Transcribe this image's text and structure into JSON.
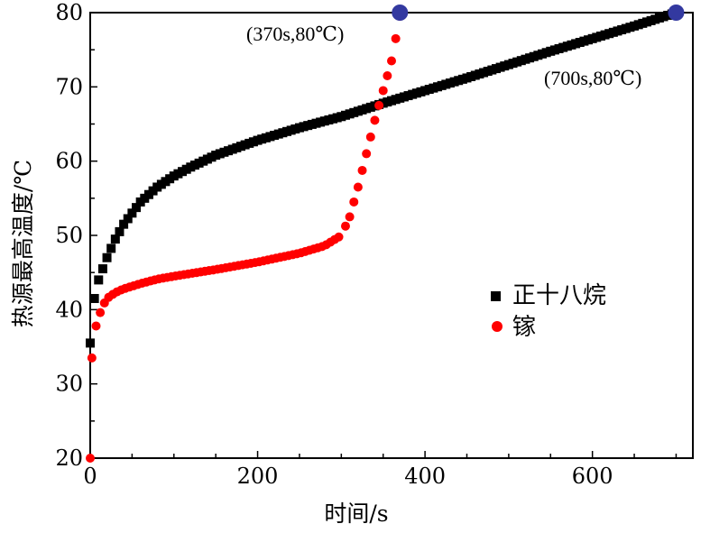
{
  "chart_data": {
    "type": "scatter",
    "xlabel": "时间/s",
    "ylabel": "热源最高温度/℃",
    "xlim": [
      0,
      720
    ],
    "ylim": [
      20,
      80
    ],
    "xticks": [
      0,
      200,
      400,
      600
    ],
    "yticks": [
      20,
      30,
      40,
      50,
      60,
      70,
      80
    ],
    "grid": false,
    "legend_position": "right",
    "series": [
      {
        "name": "正十八烷",
        "marker": "square",
        "color": "#000000",
        "x": [
          0,
          5,
          10,
          15,
          20,
          30,
          40,
          50,
          60,
          80,
          100,
          120,
          150,
          200,
          250,
          300,
          350,
          400,
          450,
          500,
          550,
          600,
          650,
          700
        ],
        "y": [
          35.5,
          41.5,
          44,
          45.5,
          47,
          49.5,
          51.5,
          53,
          54.5,
          56.5,
          58,
          59.2,
          60.8,
          62.8,
          64.5,
          66,
          67.8,
          69.5,
          71.2,
          73,
          74.8,
          76.5,
          78.2,
          80
        ]
      },
      {
        "name": "镓",
        "marker": "circle",
        "color": "#ff0000",
        "x": [
          0,
          2,
          5,
          10,
          15,
          20,
          30,
          40,
          60,
          80,
          100,
          150,
          200,
          250,
          280,
          300,
          310,
          320,
          330,
          340,
          350,
          360,
          370
        ],
        "y": [
          20,
          33.5,
          37,
          39,
          40.5,
          41.5,
          42.3,
          42.8,
          43.5,
          44.1,
          44.5,
          45.4,
          46.4,
          47.6,
          48.6,
          50,
          52.5,
          56.5,
          61,
          65.5,
          69.5,
          73.5,
          79.5
        ]
      }
    ],
    "highlight_points": [
      {
        "x": 370,
        "y": 80,
        "color": "#3339a0"
      },
      {
        "x": 700,
        "y": 80,
        "color": "#3339a0"
      }
    ],
    "annotations": [
      {
        "text": "(370s,80℃)"
      },
      {
        "text": "(700s,80℃)"
      }
    ]
  }
}
